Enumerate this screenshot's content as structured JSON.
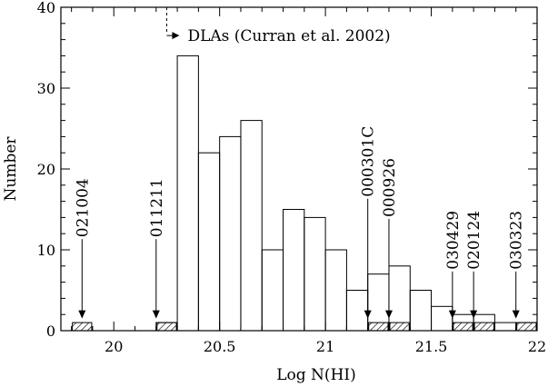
{
  "chart_data": {
    "type": "bar",
    "xlabel": "Log N(HI)",
    "ylabel": "Number",
    "xlim": [
      19.75,
      22.0
    ],
    "ylim": [
      0,
      40
    ],
    "bin_width": 0.1,
    "x_ticks": [
      20,
      20.5,
      21,
      21.5,
      22
    ],
    "x_tick_labels": [
      "20",
      "20.5",
      "21",
      "21.5",
      "22"
    ],
    "y_ticks": [
      0,
      10,
      20,
      30,
      40
    ],
    "y_tick_labels": [
      "0",
      "10",
      "20",
      "30",
      "40"
    ],
    "series": [
      {
        "style": "open",
        "bins": [
          {
            "x0": 20.2,
            "value": 1
          },
          {
            "x0": 20.3,
            "value": 34
          },
          {
            "x0": 20.4,
            "value": 22
          },
          {
            "x0": 20.5,
            "value": 24
          },
          {
            "x0": 20.6,
            "value": 26
          },
          {
            "x0": 20.7,
            "value": 10
          },
          {
            "x0": 20.8,
            "value": 15
          },
          {
            "x0": 20.9,
            "value": 14
          },
          {
            "x0": 21.0,
            "value": 10
          },
          {
            "x0": 21.1,
            "value": 5
          },
          {
            "x0": 21.2,
            "value": 7
          },
          {
            "x0": 21.3,
            "value": 8
          },
          {
            "x0": 21.4,
            "value": 5
          },
          {
            "x0": 21.5,
            "value": 3
          },
          {
            "x0": 21.6,
            "value": 2
          },
          {
            "x0": 21.7,
            "value": 2
          },
          {
            "x0": 21.8,
            "value": 1
          },
          {
            "x0": 21.9,
            "value": 1
          }
        ]
      },
      {
        "style": "hatched",
        "bins": [
          {
            "x0": 19.8,
            "value": 1
          },
          {
            "x0": 20.2,
            "value": 1
          },
          {
            "x0": 21.2,
            "value": 1
          },
          {
            "x0": 21.3,
            "value": 1
          },
          {
            "x0": 21.6,
            "value": 1
          },
          {
            "x0": 21.7,
            "value": 1
          },
          {
            "x0": 21.9,
            "value": 1
          }
        ]
      }
    ],
    "bursts": [
      {
        "label": "021004",
        "x": 19.85,
        "label_bottom_y": 12
      },
      {
        "label": "011211",
        "x": 20.2,
        "label_bottom_y": 12
      },
      {
        "label": "000301C",
        "x": 21.2,
        "label_bottom_y": 17
      },
      {
        "label": "000926",
        "x": 21.3,
        "label_bottom_y": 14.5
      },
      {
        "label": "030429",
        "x": 21.6,
        "label_bottom_y": 8
      },
      {
        "label": "020124",
        "x": 21.7,
        "label_bottom_y": 8
      },
      {
        "label": "030323",
        "x": 21.9,
        "label_bottom_y": 8
      }
    ],
    "annotation": {
      "text": "DLAs (Curran et al. 2002)",
      "x": 20.25,
      "line_y_range": [
        38,
        40
      ],
      "arrow_y": 36.5
    }
  }
}
